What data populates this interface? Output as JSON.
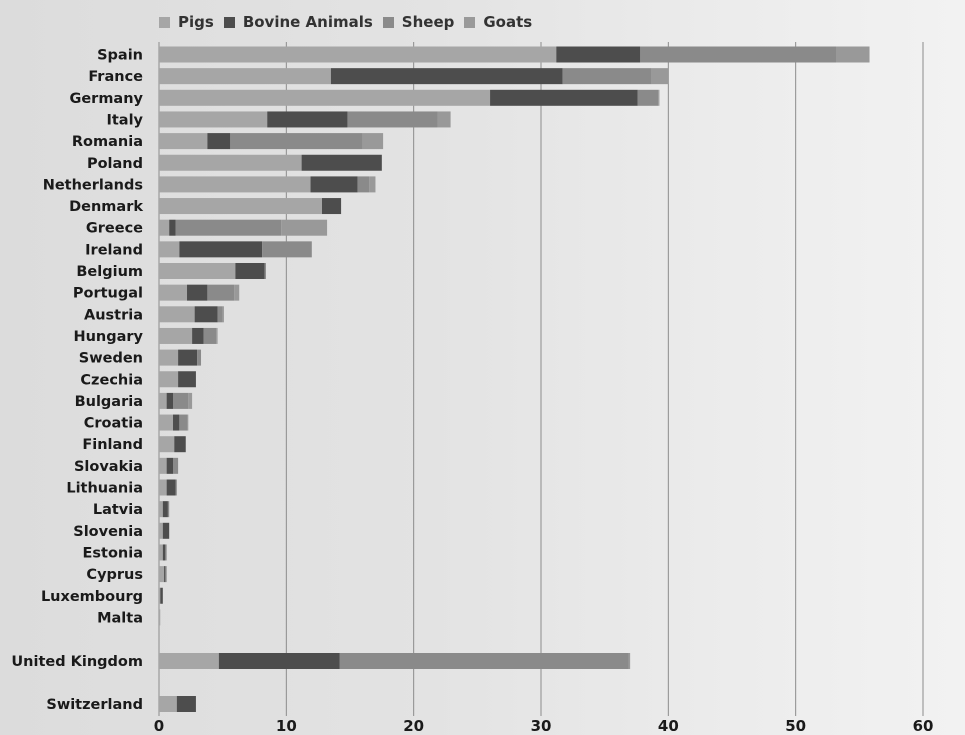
{
  "chart_data": {
    "type": "bar",
    "orientation": "horizontal",
    "stacked": true,
    "title": "",
    "xlabel": "",
    "ylabel": "",
    "xlim": [
      0,
      60
    ],
    "xticks": [
      0,
      10,
      20,
      30,
      40,
      50,
      60
    ],
    "grid": true,
    "legend_position": "top",
    "categories": [
      "Spain",
      "France",
      "Germany",
      "Italy",
      "Romania",
      "Poland",
      "Netherlands",
      "Denmark",
      "Greece",
      "Ireland",
      "Belgium",
      "Portugal",
      "Austria",
      "Hungary",
      "Sweden",
      "Czechia",
      "Bulgaria",
      "Croatia",
      "Finland",
      "Slovakia",
      "Lithuania",
      "Latvia",
      "Slovenia",
      "Estonia",
      "Cyprus",
      "Luxembourg",
      "Malta",
      "United Kingdom",
      "Switzerland"
    ],
    "series": [
      {
        "name": "Pigs",
        "color": "#a6a6a6",
        "values": [
          31.2,
          13.5,
          26.0,
          8.5,
          3.8,
          11.2,
          11.9,
          12.8,
          0.8,
          1.6,
          6.0,
          2.2,
          2.8,
          2.6,
          1.5,
          1.5,
          0.6,
          1.1,
          1.2,
          0.6,
          0.6,
          0.3,
          0.3,
          0.3,
          0.4,
          0.1,
          0.1,
          4.7,
          1.4
        ]
      },
      {
        "name": "Bovine Animals",
        "color": "#4d4d4d",
        "values": [
          6.6,
          18.2,
          11.6,
          6.3,
          1.8,
          6.3,
          3.7,
          1.5,
          0.5,
          6.5,
          2.3,
          1.6,
          1.8,
          0.9,
          1.5,
          1.4,
          0.5,
          0.5,
          0.9,
          0.5,
          0.7,
          0.4,
          0.5,
          0.2,
          0.1,
          0.2,
          0.0,
          9.5,
          1.5
        ]
      },
      {
        "name": "Sheep",
        "color": "#8a8a8a",
        "values": [
          15.4,
          7.0,
          1.6,
          7.1,
          10.4,
          0.0,
          0.9,
          0.0,
          8.3,
          3.9,
          0.1,
          2.1,
          0.4,
          1.0,
          0.3,
          0.0,
          1.2,
          0.6,
          0.0,
          0.4,
          0.1,
          0.1,
          0.0,
          0.1,
          0.1,
          0.0,
          0.0,
          22.7,
          0.0
        ]
      },
      {
        "name": "Goats",
        "color": "#999999",
        "values": [
          2.6,
          1.3,
          0.1,
          1.0,
          1.6,
          0.0,
          0.5,
          0.0,
          3.6,
          0.0,
          0.0,
          0.4,
          0.1,
          0.1,
          0.0,
          0.0,
          0.3,
          0.1,
          0.0,
          0.0,
          0.0,
          0.0,
          0.0,
          0.0,
          0.0,
          0.0,
          0.0,
          0.1,
          0.0
        ]
      }
    ]
  }
}
